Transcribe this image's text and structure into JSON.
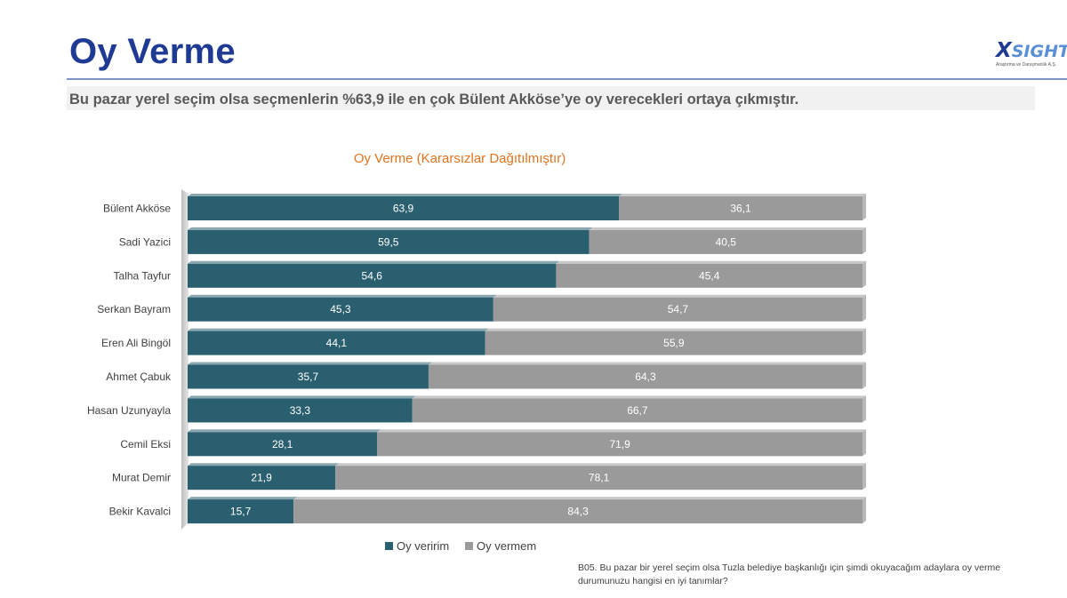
{
  "header": {
    "title": "Oy Verme",
    "subtitle": "Bu pazar yerel seçim olsa seçmenlerin %63,9 ile en çok Bülent Akköse’ye oy verecekleri ortaya çıkmıştır."
  },
  "logo": {
    "mark": "X",
    "name": "SIGHTS",
    "tagline": "Araştırma ve Danışmanlık A.Ş."
  },
  "chart_data": {
    "type": "bar",
    "orientation": "horizontal",
    "stacked": "100%",
    "title": "Oy Verme (Kararsızlar Dağıtılmıştır)",
    "categories": [
      "Bülent Akköse",
      "Sadi Yazici",
      "Talha Tayfur",
      "Serkan Bayram",
      "Eren Ali Bingöl",
      "Ahmet Çabuk",
      "Hasan Uzunyayla",
      "Cemil Eksi",
      "Murat Demir",
      "Bekir Kavalci"
    ],
    "series": [
      {
        "name": "Oy veririm",
        "color": "#2a5f70",
        "values": [
          63.9,
          59.5,
          54.6,
          45.3,
          44.1,
          35.7,
          33.3,
          28.1,
          21.9,
          15.7
        ]
      },
      {
        "name": "Oy vermem",
        "color": "#9a9a9a",
        "values": [
          36.1,
          40.5,
          45.4,
          54.7,
          55.9,
          64.3,
          66.7,
          71.9,
          78.1,
          84.3
        ]
      }
    ],
    "value_labels": {
      "Oy veririm": [
        "63,9",
        "59,5",
        "54,6",
        "45,3",
        "44,1",
        "35,7",
        "33,3",
        "28,1",
        "21,9",
        "15,7"
      ],
      "Oy vermem": [
        "36,1",
        "40,5",
        "45,4",
        "54,7",
        "55,9",
        "64,3",
        "66,7",
        "71,9",
        "78,1",
        "84,3"
      ]
    },
    "xlim": [
      0,
      100
    ],
    "grid": false,
    "legend_position": "bottom"
  },
  "footnote": "B05. Bu pazar bir yerel seçim olsa Tuzla belediye başkanlığı için şimdi okuyacağım adaylara oy verme durumunuzu hangisi en iyi tanımlar?"
}
